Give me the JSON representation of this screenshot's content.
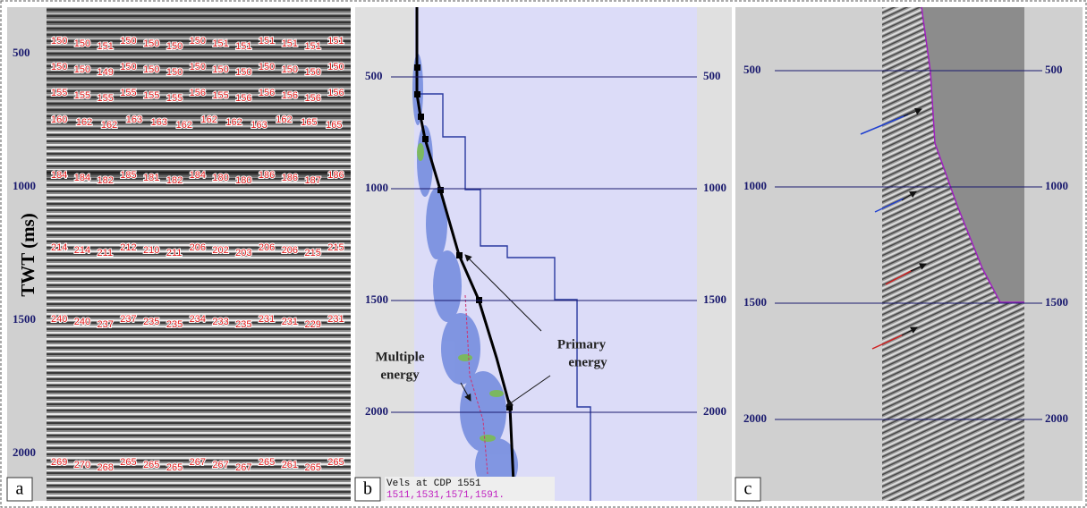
{
  "panel_a": {
    "label": "a",
    "y_axis_label": "TWT (ms)",
    "ticks": [
      500,
      1000,
      1500,
      2000
    ],
    "velocity_rows": [
      [
        "150",
        "150",
        "151",
        "150",
        "150",
        "150",
        "150",
        "151",
        "151",
        "151",
        "151",
        "151",
        "151"
      ],
      [
        "150",
        "150",
        "149",
        "150",
        "150",
        "150",
        "150",
        "150",
        "150",
        "150",
        "150",
        "150",
        "150"
      ],
      [
        "155",
        "155",
        "155",
        "155",
        "155",
        "155",
        "156",
        "155",
        "156",
        "156",
        "156",
        "156",
        "156"
      ],
      [
        "160",
        "162",
        "162",
        "163",
        "163",
        "162",
        "162",
        "162",
        "163",
        "162",
        "165",
        "165"
      ],
      [
        "184",
        "184",
        "182",
        "185",
        "181",
        "182",
        "184",
        "180",
        "180",
        "186",
        "186",
        "187",
        "186"
      ],
      [
        "214",
        "214",
        "211",
        "212",
        "210",
        "211",
        "206",
        "202",
        "203",
        "206",
        "206",
        "215",
        "215"
      ],
      [
        "240",
        "240",
        "237",
        "237",
        "235",
        "235",
        "234",
        "233",
        "235",
        "231",
        "231",
        "229",
        "231"
      ],
      [
        "269",
        "270",
        "268",
        "265",
        "265",
        "265",
        "267",
        "267",
        "267",
        "265",
        "261",
        "265",
        "265"
      ]
    ]
  },
  "panel_b": {
    "label": "b",
    "ticks": [
      500,
      1000,
      1500,
      2000
    ],
    "multiple_label": [
      "Multiple",
      "energy"
    ],
    "primary_label": [
      "Primary",
      "energy"
    ],
    "vels_title": "Vels at CDP 1551",
    "vels_values": "1511,1531,1571,1591."
  },
  "panel_c": {
    "label": "c",
    "ticks": [
      500,
      1000,
      1500,
      2000
    ]
  }
}
